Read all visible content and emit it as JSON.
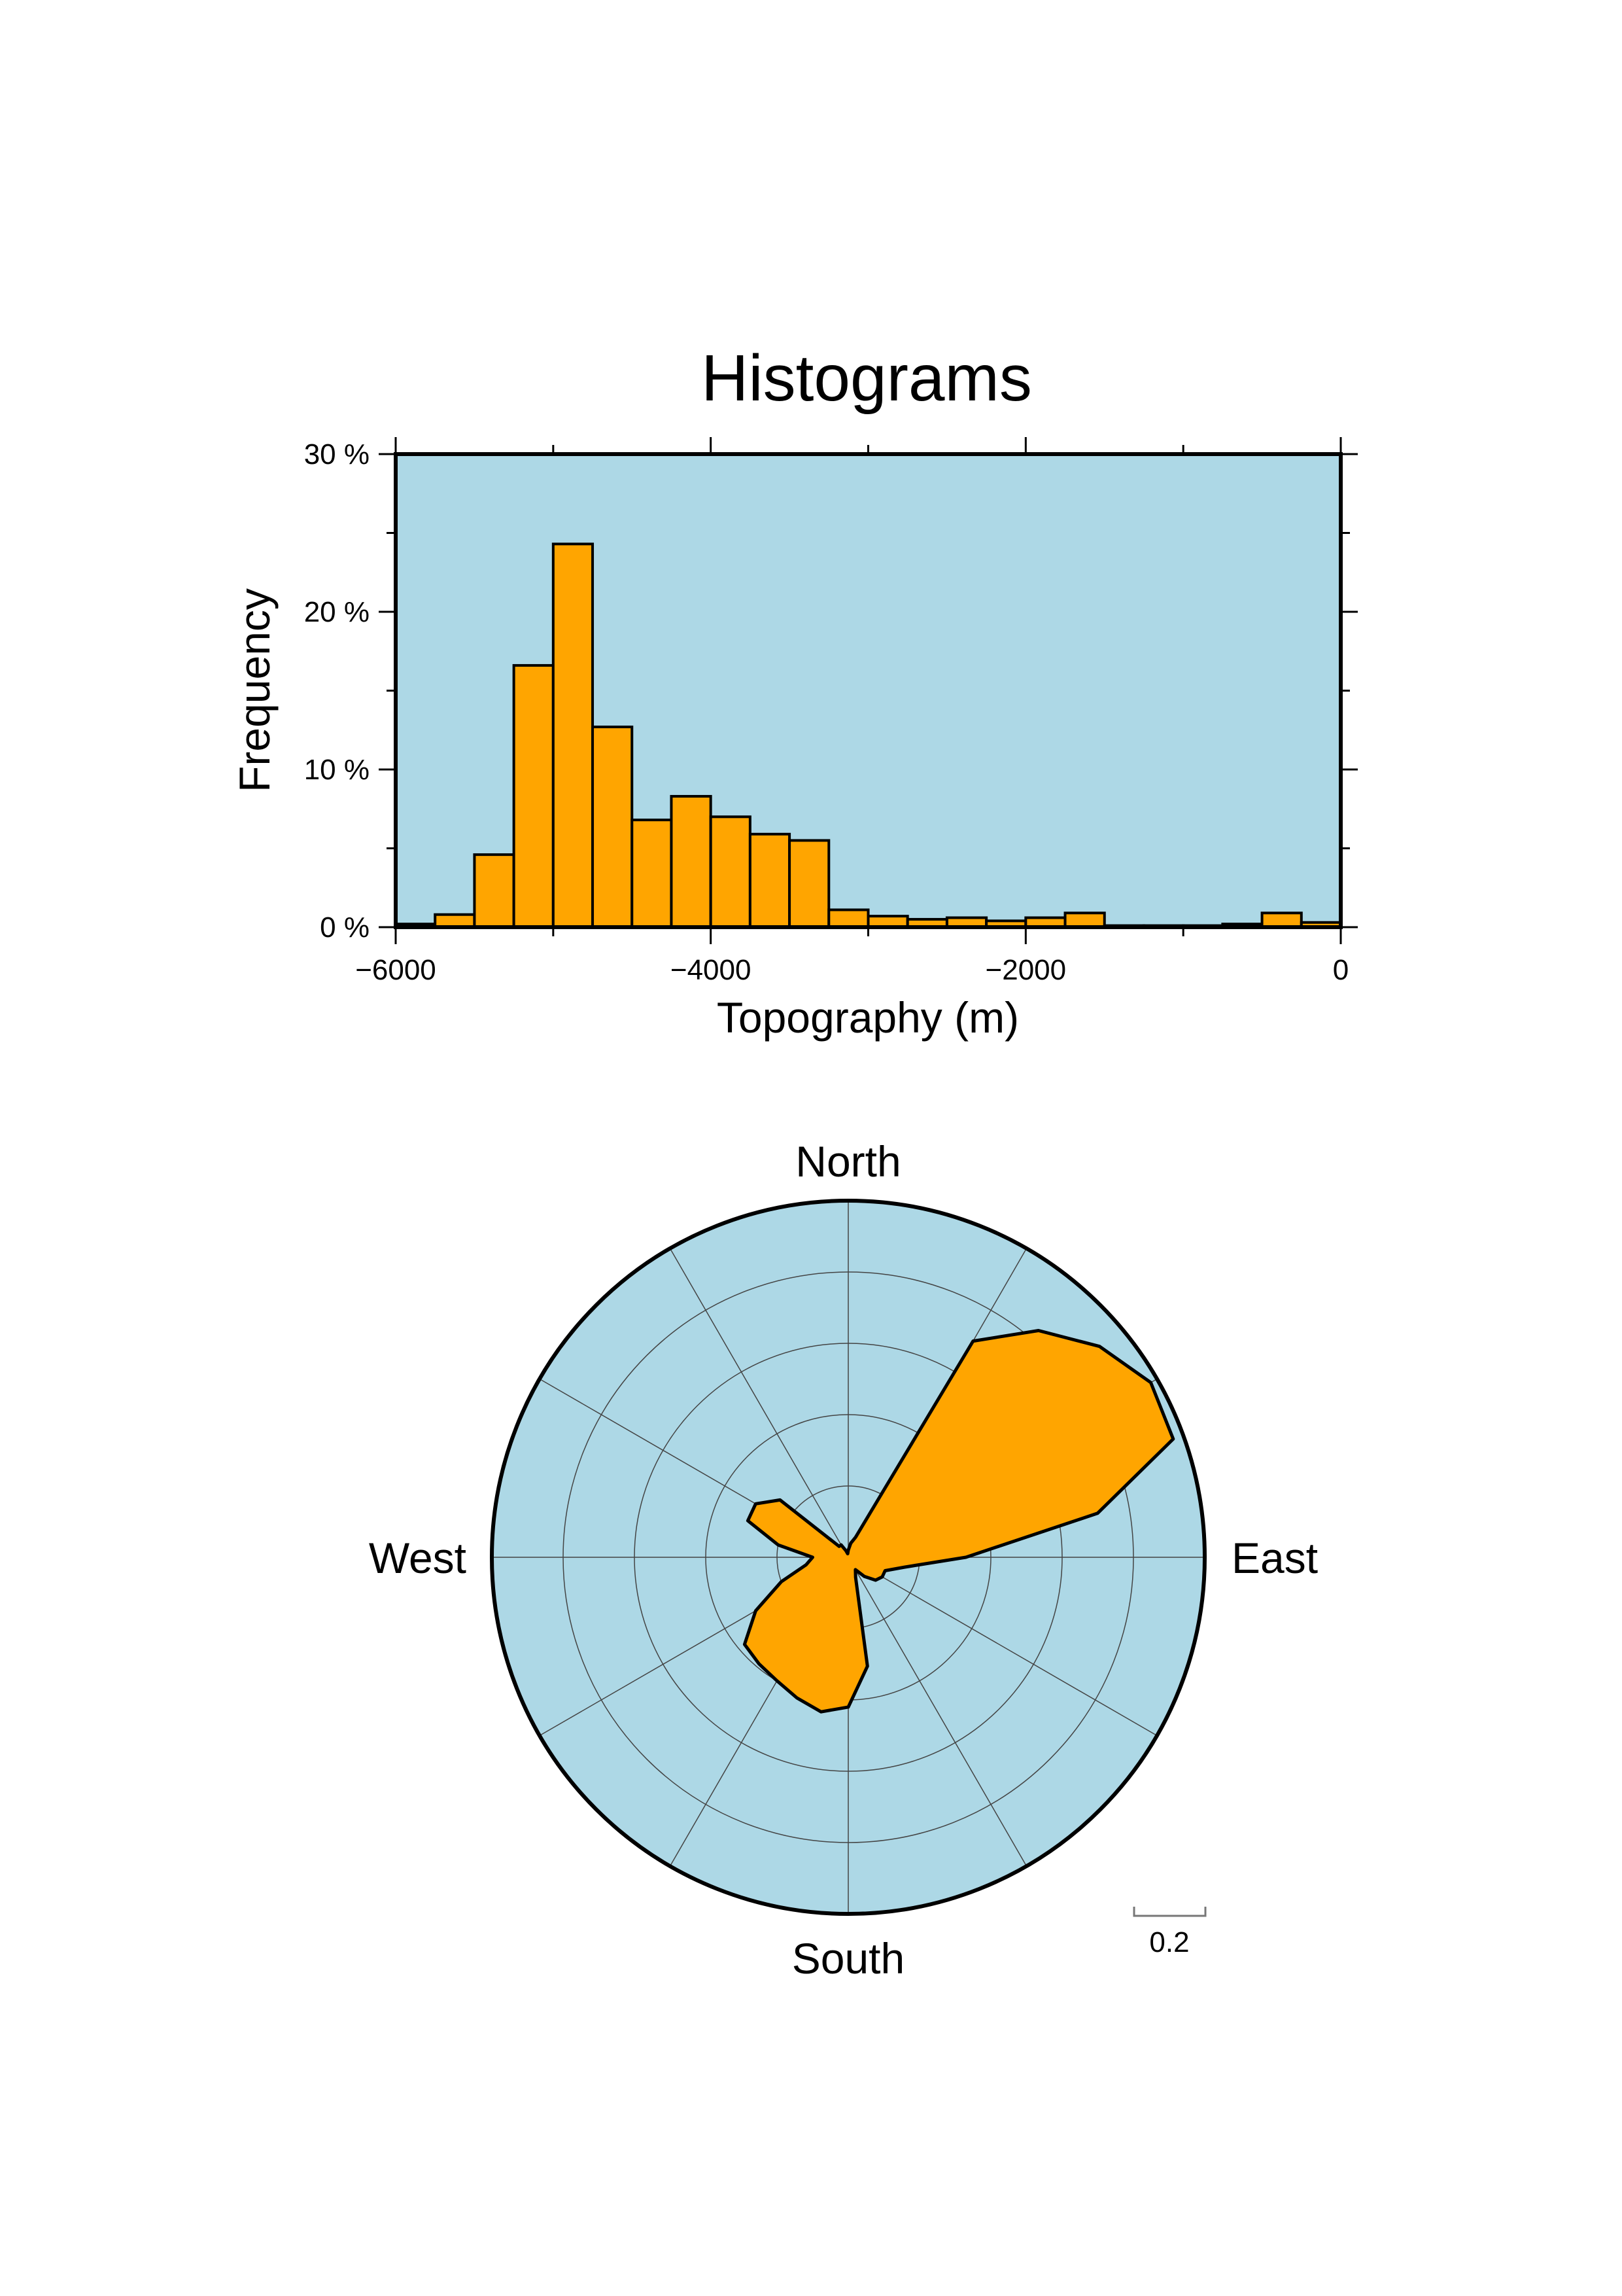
{
  "page": {
    "title": "Histograms"
  },
  "colors": {
    "plot_background": "#add8e6",
    "bar_fill": "#ffa500",
    "outline": "#000000",
    "grid": "#444444"
  },
  "chart_data": [
    {
      "type": "bar",
      "subtype": "histogram",
      "title": "Histograms",
      "xlabel": "Topography (m)",
      "ylabel": "Frequency",
      "xlim": [
        -6000,
        0
      ],
      "ylim": [
        0,
        30
      ],
      "x_ticks": [
        -6000,
        -4000,
        -2000,
        0
      ],
      "x_tick_labels": [
        "−6000",
        "−4000",
        "−2000",
        "0"
      ],
      "y_ticks": [
        0,
        10,
        20,
        30
      ],
      "y_tick_labels": [
        "0 %",
        "10 %",
        "20 %",
        "30 %"
      ],
      "grid": false,
      "bin_width": 250,
      "bin_starts": [
        -6000,
        -5750,
        -5500,
        -5250,
        -5000,
        -4750,
        -4500,
        -4250,
        -4000,
        -3750,
        -3500,
        -3250,
        -3000,
        -2750,
        -2500,
        -2250,
        -2000,
        -1750,
        -1500,
        -1250,
        -1000,
        -750,
        -500,
        -250
      ],
      "values": [
        0.2,
        0.8,
        4.6,
        16.6,
        24.3,
        12.7,
        6.8,
        8.3,
        7.0,
        5.9,
        5.5,
        1.1,
        0.7,
        0.5,
        0.6,
        0.4,
        0.6,
        0.9,
        0.1,
        0.1,
        0.1,
        0.2,
        0.9,
        0.3
      ]
    },
    {
      "type": "rose",
      "subtype": "polar-area",
      "direction_labels": {
        "north": "North",
        "east": "East",
        "south": "South",
        "west": "West"
      },
      "radial_max": 1.0,
      "ring_values": [
        0.2,
        0.4,
        0.6,
        0.8,
        1.0
      ],
      "spoke_step_degrees": 30,
      "scale_bar": {
        "value": 0.2,
        "label": "0.2"
      },
      "bin_width_degrees": 10,
      "azimuths": [
        0,
        10,
        20,
        30,
        40,
        50,
        60,
        70,
        80,
        90,
        100,
        110,
        120,
        130,
        140,
        150,
        160,
        170,
        180,
        190,
        200,
        210,
        220,
        230,
        240,
        250,
        260,
        270,
        280,
        290,
        300,
        310,
        320,
        330,
        340,
        350
      ],
      "radii": [
        0.02,
        0.04,
        0.06,
        0.7,
        0.83,
        0.92,
        0.98,
        0.97,
        0.71,
        0.33,
        0.16,
        0.11,
        0.11,
        0.1,
        0.07,
        0.04,
        0.06,
        0.31,
        0.42,
        0.44,
        0.42,
        0.4,
        0.39,
        0.38,
        0.3,
        0.2,
        0.12,
        0.1,
        0.2,
        0.3,
        0.3,
        0.25,
        0.04,
        0.04,
        0.02,
        0.01
      ]
    }
  ]
}
